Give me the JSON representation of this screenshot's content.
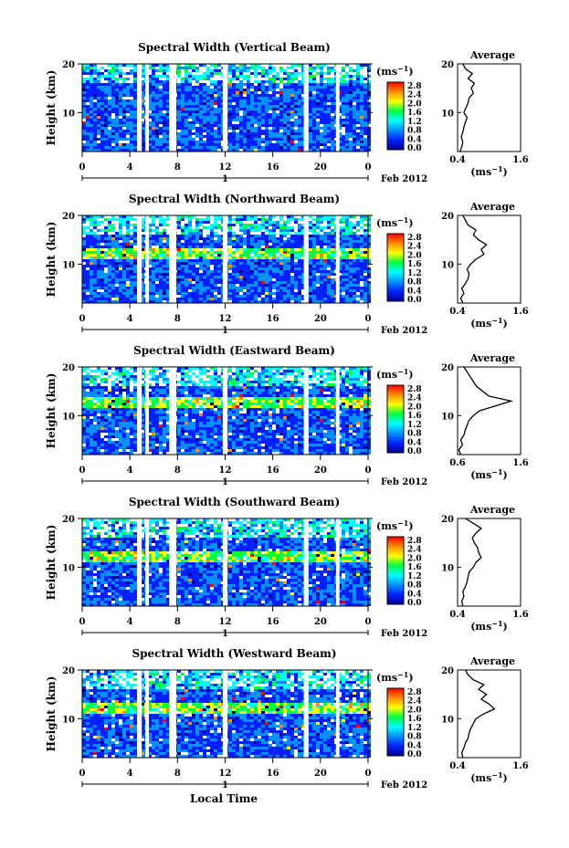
{
  "page": {
    "xlabel_bottom": "Local Time"
  },
  "colorbar": {
    "unit_base": "(ms",
    "unit_exp": "−1",
    "unit_close": ")",
    "ticks": [
      "2.8",
      "2.4",
      "2.0",
      "1.6",
      "1.2",
      "0.8",
      "0.4",
      "0.0"
    ],
    "stops": [
      "#ff0000",
      "#ff8c00",
      "#ffff00",
      "#00ff40",
      "#00ffff",
      "#0090ff",
      "#0020ff",
      "#000090"
    ]
  },
  "chart_data": [
    {
      "type": "heatmap",
      "title": "Spectral Width (Vertical Beam)",
      "ylabel": "Height (km)",
      "x_ticks": [
        "0",
        "4",
        "8",
        "12",
        "16",
        "20",
        "0"
      ],
      "xlim": [
        0,
        24
      ],
      "y_ticks": [
        "20",
        "10"
      ],
      "ylim": [
        2,
        20
      ],
      "date_ticks": [
        "1"
      ],
      "date_label": "Feb 2012",
      "gaps": [
        [
          4.6,
          5.0
        ],
        [
          5.3,
          5.6
        ],
        [
          7.3,
          7.9
        ],
        [
          11.8,
          12.2
        ],
        [
          18.6,
          19.0
        ],
        [
          21.3,
          21.6
        ]
      ],
      "profile": {
        "title": "Average",
        "xlim": [
          0.4,
          1.6
        ],
        "x_ticks": [
          "0.4",
          "1.6"
        ],
        "xlabel": "(ms",
        "xlabel_exp": "−1",
        "xlabel_close": ")",
        "y_ticks": [
          "20",
          "10"
        ],
        "points": [
          [
            0.45,
            2
          ],
          [
            0.48,
            3
          ],
          [
            0.5,
            4
          ],
          [
            0.47,
            5
          ],
          [
            0.5,
            6
          ],
          [
            0.52,
            7
          ],
          [
            0.55,
            8
          ],
          [
            0.58,
            9
          ],
          [
            0.52,
            10
          ],
          [
            0.56,
            11
          ],
          [
            0.6,
            12
          ],
          [
            0.62,
            13
          ],
          [
            0.7,
            14
          ],
          [
            0.66,
            15
          ],
          [
            0.72,
            16
          ],
          [
            0.6,
            17
          ],
          [
            0.68,
            18
          ],
          [
            0.55,
            19
          ],
          [
            0.5,
            20
          ]
        ]
      }
    },
    {
      "type": "heatmap",
      "title": "Spectral Width (Northward Beam)",
      "ylabel": "Height (km)",
      "x_ticks": [
        "0",
        "4",
        "8",
        "12",
        "16",
        "20",
        "0"
      ],
      "xlim": [
        0,
        24
      ],
      "y_ticks": [
        "20",
        "10"
      ],
      "ylim": [
        2,
        20
      ],
      "date_ticks": [
        "1"
      ],
      "date_label": "Feb 2012",
      "gaps": [
        [
          4.6,
          5.0
        ],
        [
          5.3,
          5.6
        ],
        [
          7.3,
          7.9
        ],
        [
          11.8,
          12.2
        ],
        [
          18.6,
          19.0
        ],
        [
          21.3,
          21.6
        ]
      ],
      "profile": {
        "title": "Average",
        "xlim": [
          0.4,
          1.6
        ],
        "x_ticks": [
          "0.4",
          "1.6"
        ],
        "xlabel": "(ms",
        "xlabel_exp": "−1",
        "xlabel_close": ")",
        "y_ticks": [
          "20",
          "10"
        ],
        "points": [
          [
            0.5,
            2
          ],
          [
            0.46,
            3
          ],
          [
            0.52,
            4
          ],
          [
            0.48,
            5
          ],
          [
            0.55,
            6
          ],
          [
            0.6,
            7
          ],
          [
            0.62,
            8
          ],
          [
            0.58,
            9
          ],
          [
            0.65,
            10
          ],
          [
            0.75,
            11
          ],
          [
            0.9,
            12
          ],
          [
            0.85,
            13
          ],
          [
            0.95,
            14
          ],
          [
            0.8,
            15
          ],
          [
            0.7,
            16
          ],
          [
            0.75,
            17
          ],
          [
            0.6,
            18
          ],
          [
            0.55,
            19
          ],
          [
            0.5,
            20
          ]
        ]
      }
    },
    {
      "type": "heatmap",
      "title": "Spectral Width (Eastward Beam)",
      "ylabel": "Height (km)",
      "x_ticks": [
        "0",
        "4",
        "8",
        "12",
        "16",
        "20",
        "0"
      ],
      "xlim": [
        0,
        24
      ],
      "y_ticks": [
        "20",
        "10"
      ],
      "ylim": [
        2,
        20
      ],
      "date_ticks": [
        "1"
      ],
      "date_label": "Feb 2012",
      "gaps": [
        [
          4.6,
          5.0
        ],
        [
          5.3,
          5.6
        ],
        [
          7.3,
          7.9
        ],
        [
          11.8,
          12.2
        ],
        [
          18.6,
          19.0
        ],
        [
          21.3,
          21.6
        ]
      ],
      "profile": {
        "title": "Average",
        "xlim": [
          0.6,
          1.6
        ],
        "x_ticks": [
          "0.6",
          "1.6"
        ],
        "xlabel": "(ms",
        "xlabel_exp": "−1",
        "xlabel_close": ")",
        "y_ticks": [
          "20",
          "10"
        ],
        "points": [
          [
            0.65,
            2
          ],
          [
            0.62,
            3
          ],
          [
            0.68,
            4
          ],
          [
            0.65,
            5
          ],
          [
            0.7,
            6
          ],
          [
            0.72,
            7
          ],
          [
            0.75,
            8
          ],
          [
            0.78,
            9
          ],
          [
            0.85,
            10
          ],
          [
            0.95,
            11
          ],
          [
            1.2,
            12
          ],
          [
            1.45,
            13
          ],
          [
            1.1,
            14
          ],
          [
            1.0,
            15
          ],
          [
            0.9,
            16
          ],
          [
            0.85,
            17
          ],
          [
            0.8,
            18
          ],
          [
            0.75,
            19
          ],
          [
            0.7,
            20
          ]
        ]
      }
    },
    {
      "type": "heatmap",
      "title": "Spectral Width (Southward Beam)",
      "ylabel": "Height (km)",
      "x_ticks": [
        "0",
        "4",
        "8",
        "12",
        "16",
        "20",
        "0"
      ],
      "xlim": [
        0,
        24
      ],
      "y_ticks": [
        "20",
        "10"
      ],
      "ylim": [
        2,
        20
      ],
      "date_ticks": [
        "1"
      ],
      "date_label": "Feb 2012",
      "gaps": [
        [
          4.6,
          5.0
        ],
        [
          5.3,
          5.6
        ],
        [
          7.3,
          7.9
        ],
        [
          11.8,
          12.2
        ],
        [
          18.6,
          19.0
        ],
        [
          21.3,
          21.6
        ]
      ],
      "profile": {
        "title": "Average",
        "xlim": [
          0.4,
          1.6
        ],
        "x_ticks": [
          "0.4",
          "1.6"
        ],
        "xlabel": "(ms",
        "xlabel_exp": "−1",
        "xlabel_close": ")",
        "y_ticks": [
          "20",
          "10"
        ],
        "points": [
          [
            0.5,
            2
          ],
          [
            0.48,
            3
          ],
          [
            0.52,
            4
          ],
          [
            0.5,
            5
          ],
          [
            0.55,
            6
          ],
          [
            0.58,
            7
          ],
          [
            0.6,
            8
          ],
          [
            0.62,
            9
          ],
          [
            0.7,
            10
          ],
          [
            0.75,
            11
          ],
          [
            0.85,
            12
          ],
          [
            0.8,
            13
          ],
          [
            0.78,
            14
          ],
          [
            0.72,
            15
          ],
          [
            0.68,
            16
          ],
          [
            0.75,
            17
          ],
          [
            0.85,
            18
          ],
          [
            0.7,
            19
          ],
          [
            0.55,
            20
          ]
        ]
      }
    },
    {
      "type": "heatmap",
      "title": "Spectral Width (Westward Beam)",
      "ylabel": "Height (km)",
      "x_ticks": [
        "0",
        "4",
        "8",
        "12",
        "16",
        "20",
        "0"
      ],
      "xlim": [
        0,
        24
      ],
      "y_ticks": [
        "20",
        "10"
      ],
      "ylim": [
        2,
        20
      ],
      "date_ticks": [
        "1"
      ],
      "date_label": "Feb 2012",
      "gaps": [
        [
          4.6,
          5.0
        ],
        [
          5.3,
          5.6
        ],
        [
          7.3,
          7.9
        ],
        [
          11.8,
          12.2
        ],
        [
          18.6,
          19.0
        ],
        [
          21.3,
          21.6
        ]
      ],
      "profile": {
        "title": "Average",
        "xlim": [
          0.4,
          1.6
        ],
        "x_ticks": [
          "0.4",
          "1.6"
        ],
        "xlabel": "(ms",
        "xlabel_exp": "−1",
        "xlabel_close": ")",
        "y_ticks": [
          "20",
          "10"
        ],
        "points": [
          [
            0.5,
            2
          ],
          [
            0.48,
            3
          ],
          [
            0.52,
            4
          ],
          [
            0.55,
            5
          ],
          [
            0.6,
            6
          ],
          [
            0.62,
            7
          ],
          [
            0.65,
            8
          ],
          [
            0.7,
            9
          ],
          [
            0.75,
            10
          ],
          [
            0.9,
            11
          ],
          [
            1.1,
            12
          ],
          [
            1.0,
            13
          ],
          [
            0.85,
            14
          ],
          [
            0.95,
            15
          ],
          [
            0.8,
            16
          ],
          [
            0.9,
            17
          ],
          [
            0.7,
            18
          ],
          [
            0.6,
            19
          ],
          [
            0.55,
            20
          ]
        ]
      }
    }
  ]
}
